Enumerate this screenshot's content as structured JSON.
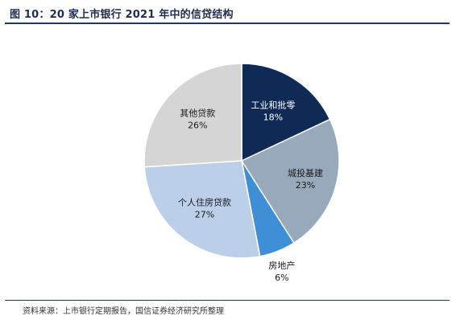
{
  "title": "图 10：20 家上市银行 2021 年中的信贷结构",
  "source": "资料来源：上市银行定期报告，国信证券经济研究所整理",
  "chart_data": {
    "type": "pie",
    "title": "",
    "start_angle_deg": 0,
    "direction": "clockwise",
    "slices": [
      {
        "label": "工业和批零",
        "value": 18,
        "value_label": "18%",
        "color": "#0f2a55",
        "text_color": "#ffffff"
      },
      {
        "label": "城投基建",
        "value": 23,
        "value_label": "23%",
        "color": "#97a9ba",
        "text_color": "#1a1a1a"
      },
      {
        "label": "房地产",
        "value": 6,
        "value_label": "6%",
        "color": "#3f8fd6",
        "text_color": "#1a1a1a"
      },
      {
        "label": "个人住房贷款",
        "value": 27,
        "value_label": "27%",
        "color": "#bccfe9",
        "text_color": "#1a1a1a"
      },
      {
        "label": "其他贷款",
        "value": 26,
        "value_label": "26%",
        "color": "#d5d5d5",
        "text_color": "#1a1a1a"
      }
    ]
  }
}
